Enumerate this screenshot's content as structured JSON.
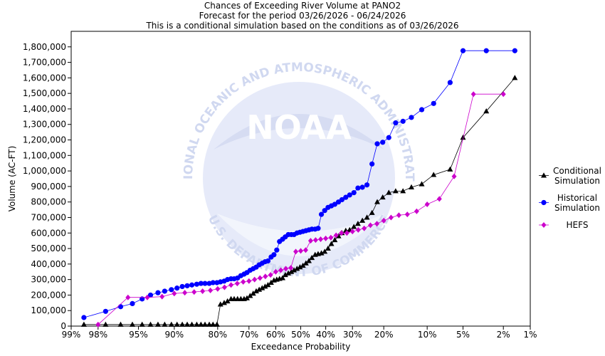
{
  "header": {
    "title": "Chances of Exceeding River Volume at PANO2",
    "subtitle": "Forecast for the period 03/26/2026 - 06/24/2026",
    "note": "This is a conditional simulation based on the conditions as of 03/26/2026"
  },
  "watermark": {
    "logo_text": "NOAA",
    "ring_text": "NATIONAL OCEANIC AND ATMOSPHERIC ADMINISTRATION",
    "bottom_text": "U.S. DEPARTMENT OF COMMERCE"
  },
  "chart_data": {
    "type": "line",
    "xlabel": "Exceedance Probability",
    "ylabel": "Volume (AC-FT)",
    "x_scale": "normal-probability",
    "x_ticks": [
      {
        "value": 99,
        "label": "99%"
      },
      {
        "value": 98,
        "label": "98%"
      },
      {
        "value": 95,
        "label": "95%"
      },
      {
        "value": 90,
        "label": "90%"
      },
      {
        "value": 80,
        "label": "80%"
      },
      {
        "value": 70,
        "label": "70%"
      },
      {
        "value": 60,
        "label": "60%"
      },
      {
        "value": 50,
        "label": "50%"
      },
      {
        "value": 40,
        "label": "40%"
      },
      {
        "value": 30,
        "label": "30%"
      },
      {
        "value": 20,
        "label": "20%"
      },
      {
        "value": 10,
        "label": "10%"
      },
      {
        "value": 5,
        "label": "5%"
      },
      {
        "value": 2,
        "label": "2%"
      },
      {
        "value": 1,
        "label": "1%"
      }
    ],
    "y_ticks": [
      {
        "value": 0,
        "label": "0"
      },
      {
        "value": 100000,
        "label": "100,000"
      },
      {
        "value": 200000,
        "label": "200,000"
      },
      {
        "value": 300000,
        "label": "300,000"
      },
      {
        "value": 400000,
        "label": "400,000"
      },
      {
        "value": 500000,
        "label": "500,000"
      },
      {
        "value": 600000,
        "label": "600,000"
      },
      {
        "value": 700000,
        "label": "700,000"
      },
      {
        "value": 800000,
        "label": "800,000"
      },
      {
        "value": 900000,
        "label": "900,000"
      },
      {
        "value": 1000000,
        "label": "1,000,000"
      },
      {
        "value": 1100000,
        "label": "1,100,000"
      },
      {
        "value": 1200000,
        "label": "1,200,000"
      },
      {
        "value": 1300000,
        "label": "1,300,000"
      },
      {
        "value": 1400000,
        "label": "1,400,000"
      },
      {
        "value": 1500000,
        "label": "1,500,000"
      },
      {
        "value": 1600000,
        "label": "1,600,000"
      },
      {
        "value": 1700000,
        "label": "1,700,000"
      },
      {
        "value": 1800000,
        "label": "1,800,000"
      }
    ],
    "ylim": [
      0,
      1900000
    ],
    "xlim": [
      99,
      1
    ],
    "grid": false,
    "legend_position": "right",
    "series": [
      {
        "name": "Conditional Simulation",
        "legend_lines": [
          "Conditional",
          "Simulation"
        ],
        "color": "#000000",
        "marker": "triangle",
        "x": [
          98.6,
          97.6,
          96.6,
          95.6,
          94.6,
          93.6,
          92.6,
          91.6,
          90.5,
          89.5,
          88.5,
          87.5,
          86.5,
          85.4,
          84.4,
          83.4,
          82.3,
          81.3,
          80.2,
          79.2,
          78.1,
          77.1,
          76.0,
          75.0,
          73.9,
          72.8,
          71.7,
          70.7,
          69.6,
          68.5,
          67.4,
          66.3,
          65.2,
          64.1,
          63.0,
          61.8,
          60.7,
          59.6,
          58.5,
          57.3,
          56.2,
          55.0,
          53.8,
          52.7,
          51.5,
          50.3,
          49.1,
          47.9,
          46.7,
          45.5,
          44.2,
          43.0,
          41.7,
          40.4,
          39.1,
          37.8,
          36.5,
          35.1,
          33.8,
          32.4,
          31.0,
          29.5,
          28.1,
          26.6,
          25.1,
          23.5,
          21.9,
          20.3,
          18.6,
          16.8,
          15.0,
          13.1,
          11.0,
          8.9,
          6.5,
          5.0,
          3.0,
          1.5
        ],
        "y": [
          10000,
          10000,
          10000,
          10000,
          10000,
          10000,
          10000,
          10000,
          10000,
          10000,
          10000,
          10000,
          10000,
          10000,
          10000,
          10000,
          10000,
          10000,
          10000,
          140000,
          150000,
          160000,
          175000,
          175000,
          175000,
          175000,
          175000,
          180000,
          195000,
          210000,
          225000,
          235000,
          245000,
          255000,
          265000,
          280000,
          295000,
          300000,
          305000,
          310000,
          330000,
          340000,
          350000,
          360000,
          370000,
          380000,
          390000,
          405000,
          420000,
          440000,
          460000,
          465000,
          470000,
          480000,
          500000,
          530000,
          555000,
          580000,
          600000,
          615000,
          620000,
          640000,
          660000,
          680000,
          700000,
          730000,
          800000,
          830000,
          860000,
          870000,
          870000,
          895000,
          915000,
          975000,
          1010000,
          1215000,
          1385000,
          1600000
        ]
      },
      {
        "name": "Historical Simulation",
        "legend_lines": [
          "Historical",
          "Simulation"
        ],
        "color": "#0000ff",
        "marker": "circle",
        "x": [
          98.6,
          97.6,
          96.6,
          95.6,
          94.6,
          93.6,
          92.6,
          91.6,
          90.5,
          89.5,
          88.5,
          87.5,
          86.5,
          85.4,
          84.4,
          83.4,
          82.3,
          81.3,
          80.2,
          79.2,
          78.1,
          77.1,
          76.0,
          75.0,
          73.9,
          72.8,
          71.7,
          70.7,
          69.6,
          68.5,
          67.4,
          66.3,
          65.2,
          64.1,
          63.0,
          61.8,
          60.7,
          59.6,
          58.5,
          57.3,
          56.2,
          55.0,
          53.8,
          52.7,
          51.5,
          50.3,
          49.1,
          47.9,
          46.7,
          45.5,
          44.2,
          43.0,
          41.7,
          40.4,
          39.1,
          37.8,
          36.5,
          35.1,
          33.8,
          32.4,
          31.0,
          29.5,
          28.1,
          26.6,
          25.1,
          23.5,
          21.9,
          20.3,
          18.6,
          16.8,
          15.0,
          13.1,
          11.0,
          8.9,
          6.5,
          5.0,
          3.0,
          1.5
        ],
        "y": [
          55000,
          95000,
          125000,
          145000,
          175000,
          200000,
          215000,
          225000,
          235000,
          245000,
          255000,
          260000,
          265000,
          270000,
          275000,
          275000,
          275000,
          280000,
          280000,
          285000,
          290000,
          300000,
          305000,
          305000,
          310000,
          325000,
          335000,
          345000,
          360000,
          370000,
          380000,
          395000,
          405000,
          415000,
          420000,
          445000,
          460000,
          490000,
          545000,
          560000,
          575000,
          590000,
          590000,
          590000,
          600000,
          605000,
          610000,
          615000,
          620000,
          625000,
          625000,
          630000,
          720000,
          745000,
          765000,
          775000,
          785000,
          800000,
          815000,
          830000,
          845000,
          860000,
          890000,
          895000,
          910000,
          1045000,
          1175000,
          1185000,
          1215000,
          1310000,
          1320000,
          1345000,
          1395000,
          1435000,
          1570000,
          1775000,
          1775000,
          1775000
        ]
      },
      {
        "name": "HEFS",
        "legend_lines": [
          "HEFS"
        ],
        "color": "#cc00cc",
        "marker": "diamond",
        "x": [
          98.0,
          96.0,
          94.0,
          92.0,
          90.0,
          88.0,
          86.0,
          84.0,
          82.0,
          80.0,
          78.0,
          76.0,
          74.0,
          72.0,
          70.0,
          68.0,
          66.0,
          64.0,
          62.0,
          60.0,
          58.0,
          56.0,
          54.0,
          52.0,
          50.0,
          48.0,
          46.0,
          44.0,
          42.0,
          40.0,
          38.0,
          36.0,
          34.0,
          32.0,
          30.0,
          28.0,
          26.0,
          24.0,
          22.0,
          20.0,
          18.0,
          16.0,
          14.0,
          12.0,
          10.0,
          8.0,
          6.0,
          4.0,
          2.0
        ],
        "y": [
          10000,
          185000,
          185000,
          190000,
          210000,
          215000,
          220000,
          225000,
          230000,
          240000,
          250000,
          265000,
          275000,
          285000,
          290000,
          300000,
          310000,
          320000,
          330000,
          350000,
          360000,
          370000,
          375000,
          480000,
          485000,
          490000,
          550000,
          555000,
          560000,
          565000,
          570000,
          585000,
          600000,
          600000,
          610000,
          620000,
          630000,
          650000,
          660000,
          680000,
          700000,
          715000,
          720000,
          740000,
          785000,
          820000,
          965000,
          1495000,
          1495000
        ]
      }
    ]
  }
}
